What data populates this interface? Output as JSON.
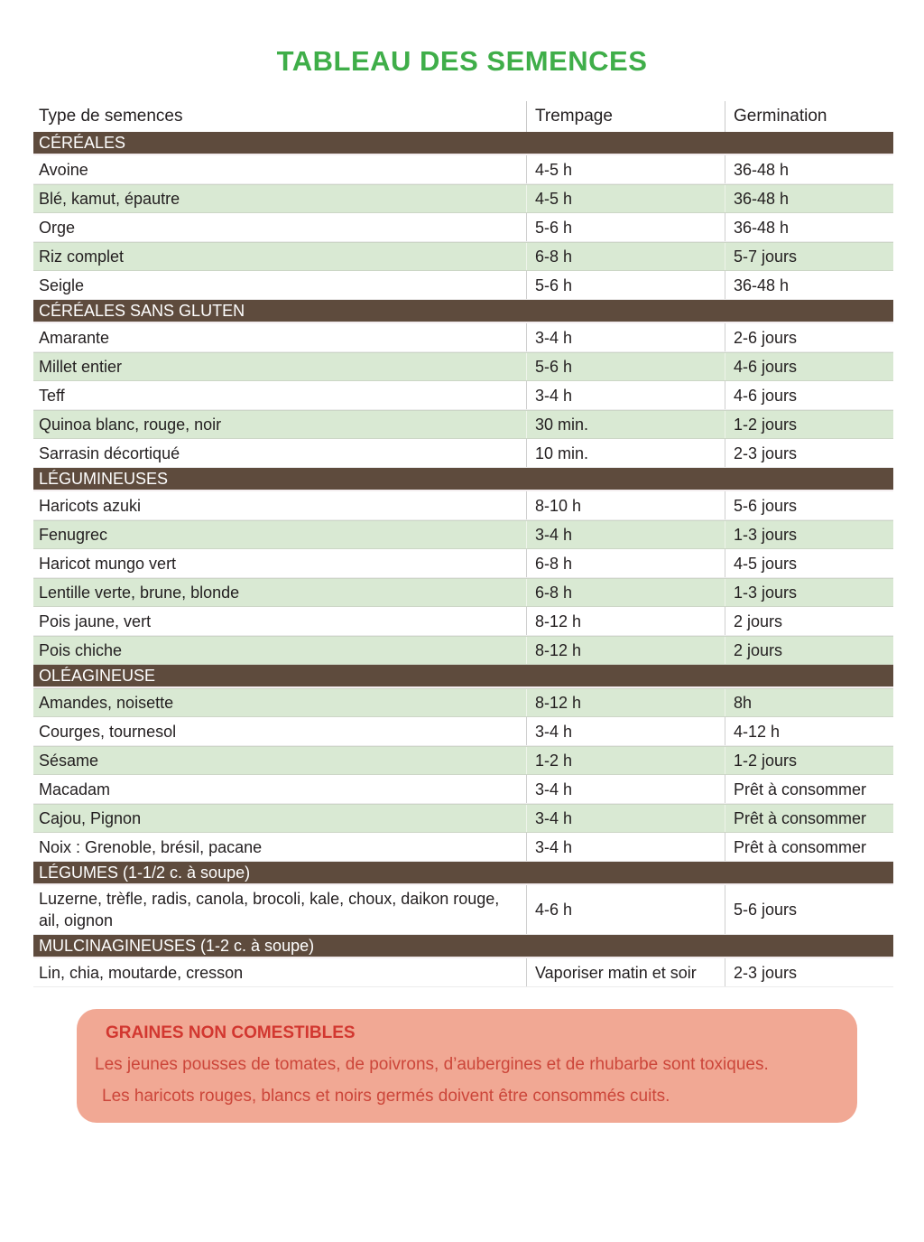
{
  "page": {
    "title": "TABLEAU DES SEMENCES"
  },
  "colors": {
    "title_green": "#3fae49",
    "section_brown": "#5e4b3d",
    "row_green": "#d9e9d3",
    "warning_bg": "#f1a894",
    "warning_red": "#d23730"
  },
  "table": {
    "columns": [
      "Type de semences",
      "Trempage",
      "Germination"
    ],
    "sections": [
      {
        "label": "CÉRÉALES",
        "rows": [
          {
            "name": "Avoine",
            "trempage": "4-5 h",
            "germination": "36-48 h",
            "shaded": false
          },
          {
            "name": "Blé, kamut, épautre",
            "trempage": "4-5 h",
            "germination": "36-48 h",
            "shaded": true
          },
          {
            "name": "Orge",
            "trempage": "5-6 h",
            "germination": "36-48 h",
            "shaded": false
          },
          {
            "name": "Riz complet",
            "trempage": "6-8 h",
            "germination": "5-7 jours",
            "shaded": true
          },
          {
            "name": "Seigle",
            "trempage": "5-6 h",
            "germination": "36-48 h",
            "shaded": false
          }
        ]
      },
      {
        "label": "CÉRÉALES SANS GLUTEN",
        "rows": [
          {
            "name": "Amarante",
            "trempage": "3-4 h",
            "germination": "2-6 jours",
            "shaded": false
          },
          {
            "name": "Millet entier",
            "trempage": "5-6 h",
            "germination": "4-6 jours",
            "shaded": true
          },
          {
            "name": "Teff",
            "trempage": "3-4 h",
            "germination": "4-6 jours",
            "shaded": false
          },
          {
            "name": "Quinoa blanc, rouge, noir",
            "trempage": "30 min.",
            "germination": "1-2 jours",
            "shaded": true
          },
          {
            "name": "Sarrasin décortiqué",
            "trempage": "10 min.",
            "germination": "2-3 jours",
            "shaded": false
          }
        ]
      },
      {
        "label": "LÉGUMINEUSES",
        "rows": [
          {
            "name": "Haricots azuki",
            "trempage": "8-10 h",
            "germination": "5-6 jours",
            "shaded": false
          },
          {
            "name": "Fenugrec",
            "trempage": "3-4 h",
            "germination": "1-3 jours",
            "shaded": true
          },
          {
            "name": "Haricot mungo vert",
            "trempage": "6-8 h",
            "germination": "4-5 jours",
            "shaded": false
          },
          {
            "name": "Lentille verte, brune, blonde",
            "trempage": "6-8 h",
            "germination": "1-3 jours",
            "shaded": true
          },
          {
            "name": "Pois jaune, vert",
            "trempage": "8-12 h",
            "germination": "2 jours",
            "shaded": false
          },
          {
            "name": "Pois chiche",
            "trempage": "8-12 h",
            "germination": "2 jours",
            "shaded": true
          }
        ]
      },
      {
        "label": "OLÉAGINEUSE",
        "rows": [
          {
            "name": "Amandes, noisette",
            "trempage": "8-12 h",
            "germination": "8h",
            "shaded": true
          },
          {
            "name": "Courges, tournesol",
            "trempage": "3-4 h",
            "germination": "4-12 h",
            "shaded": false
          },
          {
            "name": "Sésame",
            "trempage": "1-2 h",
            "germination": "1-2 jours",
            "shaded": true
          },
          {
            "name": "Macadam",
            "trempage": "3-4 h",
            "germination": "Prêt à consommer",
            "shaded": false
          },
          {
            "name": "Cajou, Pignon",
            "trempage": "3-4 h",
            "germination": "Prêt à consommer",
            "shaded": true
          },
          {
            "name": "Noix : Grenoble, brésil, pacane",
            "trempage": "3-4 h",
            "germination": "Prêt à consommer",
            "shaded": false
          }
        ]
      },
      {
        "label": "LÉGUMES (1-1/2 c. à soupe)",
        "rows": [
          {
            "name": "Luzerne, trèfle, radis, canola, brocoli, kale, choux, daikon rouge, ail, oignon",
            "trempage": "4-6 h",
            "germination": "5-6 jours",
            "shaded": false
          }
        ]
      },
      {
        "label": "MULCINAGINEUSES (1-2 c. à soupe)",
        "rows": [
          {
            "name": "Lin, chia, moutarde, cresson",
            "trempage": "Vaporiser matin et soir",
            "germination": "2-3 jours",
            "shaded": false
          }
        ]
      }
    ]
  },
  "warning": {
    "title": "GRAINES NON COMESTIBLES",
    "lines": [
      "Les jeunes pousses de tomates, de poivrons, d’aubergines et de rhubarbe sont toxiques.",
      "Les haricots rouges, blancs et noirs germés doivent être consommés cuits."
    ]
  }
}
